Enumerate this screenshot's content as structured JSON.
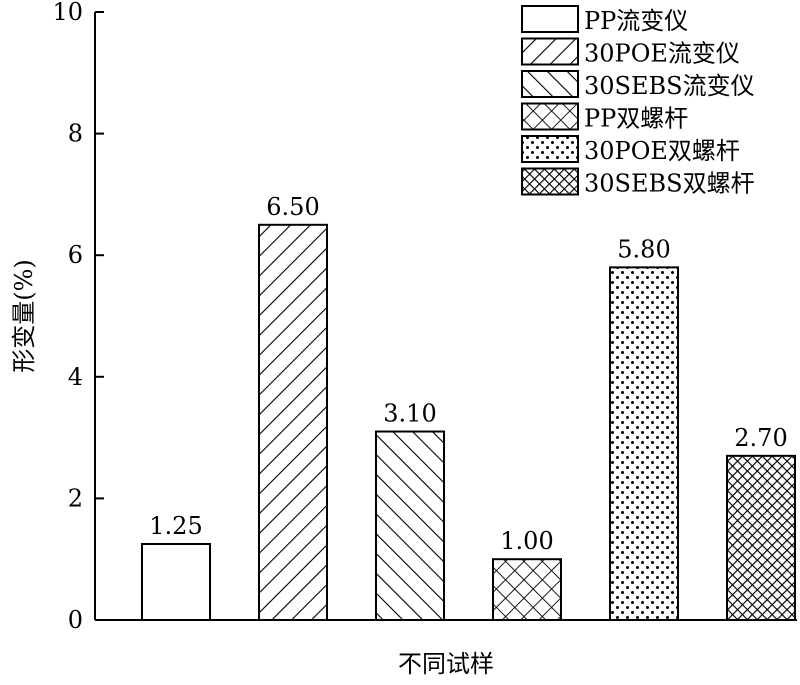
{
  "chart_data": {
    "type": "bar",
    "xlabel": "不同试样",
    "ylabel": "形变量(%)",
    "ylim": [
      0,
      10
    ],
    "yticks": [
      0,
      2,
      4,
      6,
      8,
      10
    ],
    "grid": false,
    "legend_position": "top-right",
    "series": [
      {
        "name": "PP流变仪",
        "value": 1.25,
        "value_label": "1.25",
        "pattern": "blank"
      },
      {
        "name": "30POE流变仪",
        "value": 6.5,
        "value_label": "6.50",
        "pattern": "forward-diagonal"
      },
      {
        "name": "30SEBS流变仪",
        "value": 3.1,
        "value_label": "3.10",
        "pattern": "back-diagonal"
      },
      {
        "name": "PP双螺杆",
        "value": 1.0,
        "value_label": "1.00",
        "pattern": "crosshatch"
      },
      {
        "name": "30POE双螺杆",
        "value": 5.8,
        "value_label": "5.80",
        "pattern": "dots"
      },
      {
        "name": "30SEBS双螺杆",
        "value": 2.7,
        "value_label": "2.70",
        "pattern": "dense-crosshatch"
      }
    ]
  }
}
